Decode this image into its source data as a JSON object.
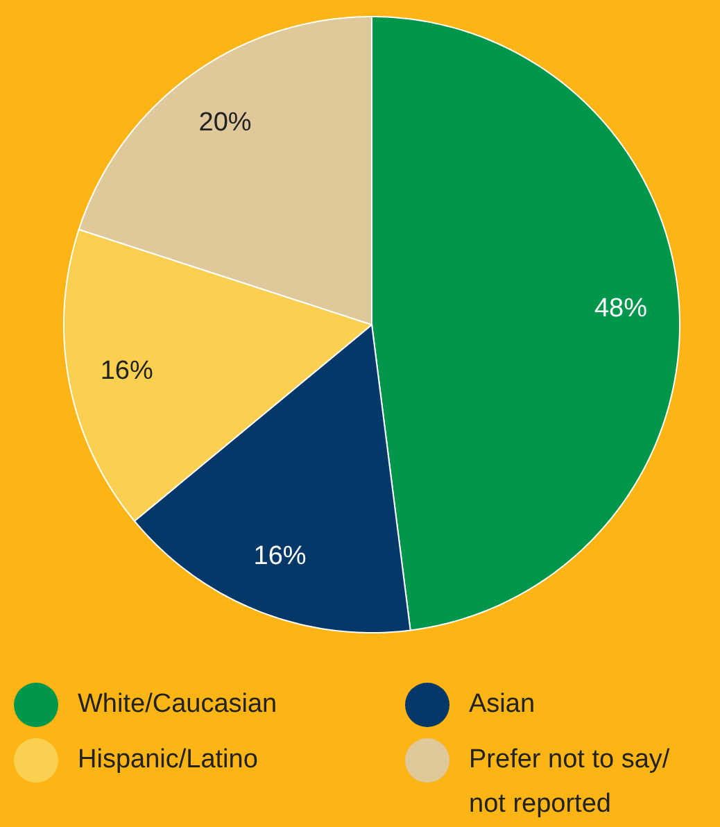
{
  "chart_data": {
    "type": "pie",
    "categories": [
      "White/Caucasian",
      "Asian",
      "Hispanic/Latino",
      "Prefer not to say/ not reported"
    ],
    "values": [
      48,
      16,
      16,
      20
    ],
    "value_labels": [
      "48%",
      "16%",
      "16%",
      "20%"
    ],
    "colors": [
      "#00964b",
      "#033868",
      "#fbd050",
      "#dfc89a"
    ],
    "legend": "bottom"
  }
}
